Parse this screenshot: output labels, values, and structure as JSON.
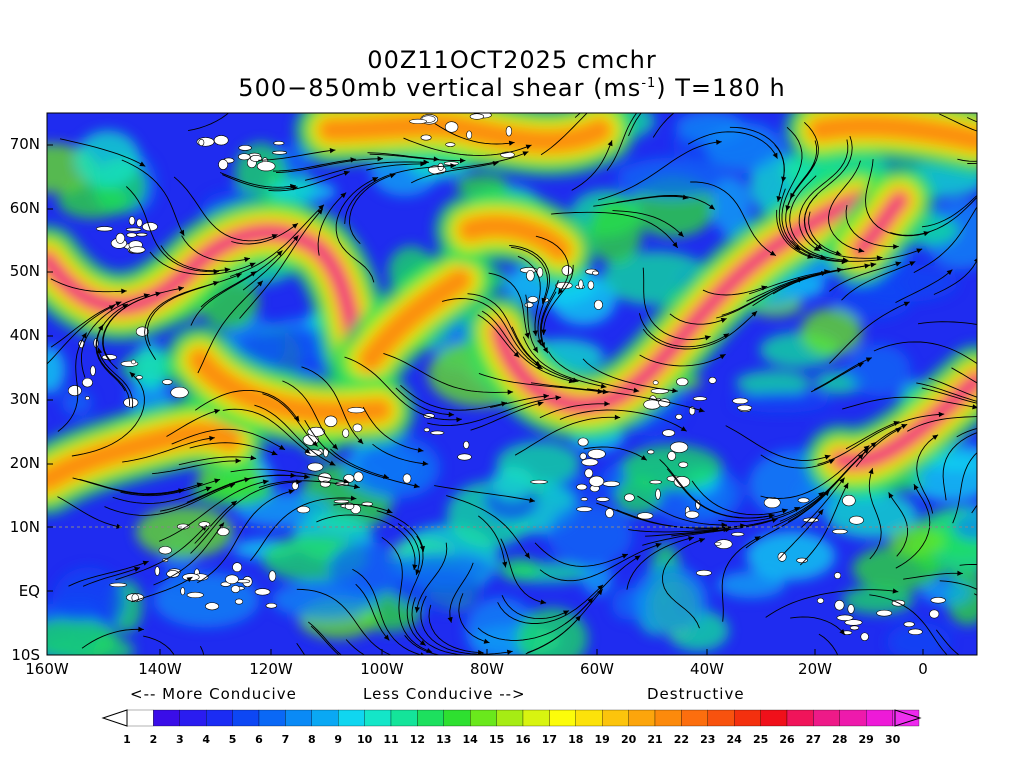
{
  "title": {
    "line1": "00Z11OCT2025 cmchr",
    "line2_pre": "500−850mb vertical shear (ms",
    "line2_sup": "-1",
    "line2_post": ") T=180 h"
  },
  "lat_labels": [
    "70N",
    "60N",
    "50N",
    "40N",
    "30N",
    "20N",
    "10N",
    "EQ",
    "10S"
  ],
  "lon_labels": [
    "160W",
    "140W",
    "120W",
    "100W",
    "80W",
    "60W",
    "40W",
    "20W",
    "0"
  ],
  "conducive": {
    "more": "<-- More Conducive",
    "less": "Less Conducive -->",
    "destructive": "Destructive"
  },
  "colorbar": {
    "labels": [
      "1",
      "2",
      "3",
      "4",
      "5",
      "6",
      "7",
      "8",
      "9",
      "10",
      "11",
      "12",
      "13",
      "14",
      "15",
      "16",
      "17",
      "18",
      "19",
      "20",
      "21",
      "22",
      "23",
      "24",
      "25",
      "26",
      "27",
      "28",
      "29",
      "30"
    ],
    "colors": [
      "#ffffff",
      "#3a0de8",
      "#2a1cf0",
      "#1b2cf4",
      "#0d47f4",
      "#0a68f6",
      "#0a8af6",
      "#0aa8f4",
      "#10d6f0",
      "#14e6c8",
      "#14e49a",
      "#1de05e",
      "#2ee030",
      "#6ae81c",
      "#a6ec14",
      "#d8f410",
      "#fcfc0a",
      "#fce20a",
      "#fcc40c",
      "#fca50c",
      "#fc8a0c",
      "#fc6e0e",
      "#f8520e",
      "#f4300e",
      "#f0101a",
      "#f0145a",
      "#ee1a88",
      "#ee1aac",
      "#ee1ad8",
      "#ee28ee"
    ]
  },
  "colors": {
    "over": "#ee30ee",
    "under": "#ffffff",
    "grid": "#000000"
  }
}
